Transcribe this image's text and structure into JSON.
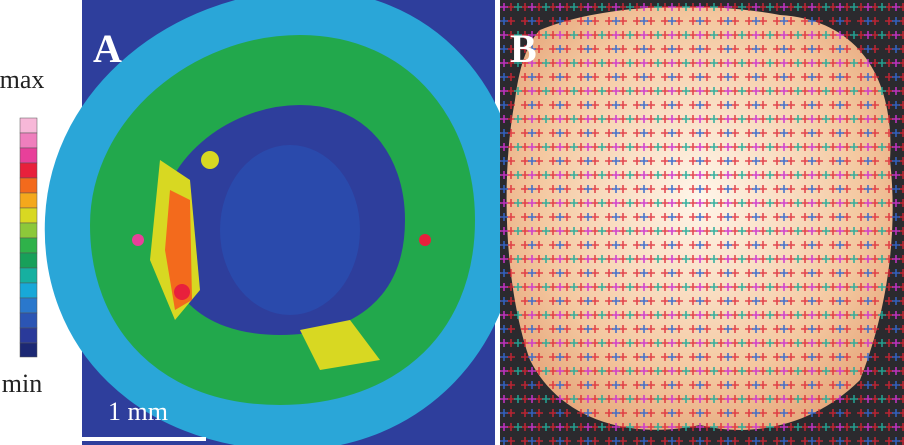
{
  "colorbar": {
    "top_label": "max",
    "bottom_label": "min"
  },
  "panels": [
    {
      "label": "A",
      "scale_bar": "1 mm"
    },
    {
      "label": "B"
    }
  ]
}
